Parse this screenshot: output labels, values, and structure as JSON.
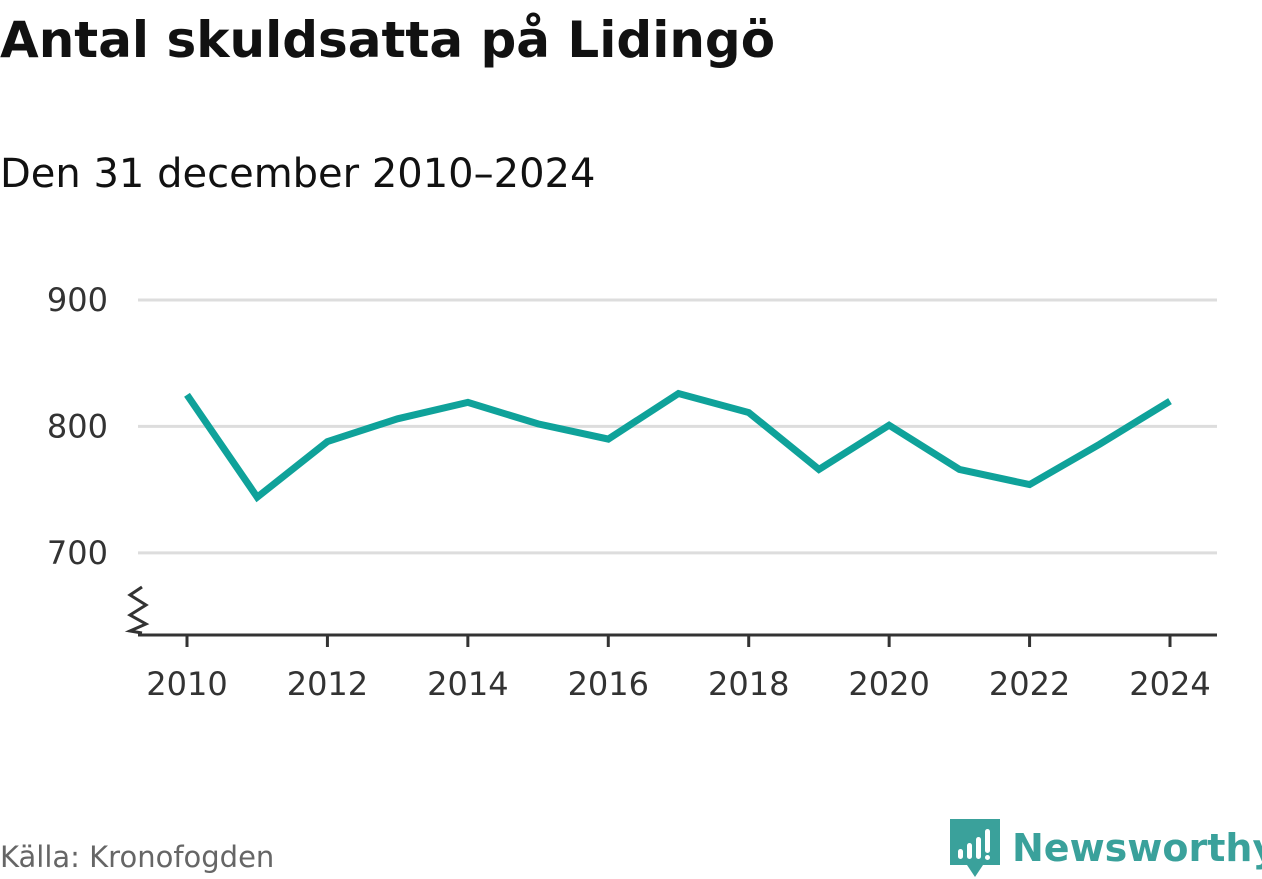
{
  "title": "Antal skuldsatta på Lidingö",
  "subtitle": "Den 31 december 2010–2024",
  "source": "Källa: Kronofogden",
  "brand": {
    "name": "Newsworthy",
    "icon": "newsworthy-logo-icon",
    "color": "#3aa19b"
  },
  "colors": {
    "line": "#0fa29a",
    "grid": "#dddddd",
    "axis": "#333333"
  },
  "chart_data": {
    "type": "line",
    "title": "Antal skuldsatta på Lidingö",
    "subtitle": "Den 31 december 2010–2024",
    "xlabel": "",
    "ylabel": "",
    "x": [
      2010,
      2011,
      2012,
      2013,
      2014,
      2015,
      2016,
      2017,
      2018,
      2019,
      2020,
      2021,
      2022,
      2023,
      2024
    ],
    "series": [
      {
        "name": "Antal skuldsatta",
        "values": [
          825,
          744,
          788,
          806,
          819,
          802,
          790,
          826,
          811,
          766,
          801,
          766,
          754,
          786,
          820
        ]
      }
    ],
    "xticks": [
      "2010",
      "2012",
      "2014",
      "2016",
      "2018",
      "2020",
      "2022",
      "2024"
    ],
    "yticks": [
      "900",
      "800",
      "700"
    ],
    "ylim": [
      635,
      900
    ],
    "axis_break": true,
    "grid": true
  }
}
